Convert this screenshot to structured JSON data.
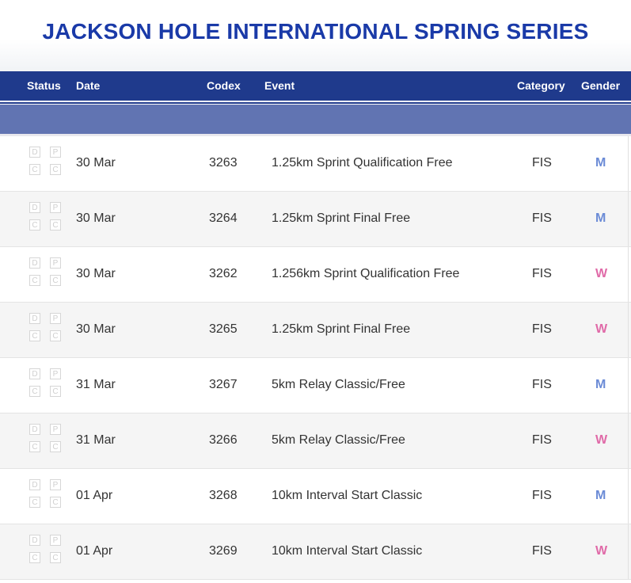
{
  "title": "JACKSON HOLE INTERNATIONAL SPRING SERIES",
  "header": {
    "status": "Status",
    "date": "Date",
    "codex": "Codex",
    "event": "Event",
    "category": "Category",
    "gender": "Gender"
  },
  "status_letters": [
    "D",
    "P",
    "C",
    "C"
  ],
  "colors": {
    "title": "#1a3aa8",
    "header_bg": "#1f3a8c",
    "subheader_bg": "#6174b2",
    "gender_m": "#6b8bd6",
    "gender_w": "#e06aa8"
  },
  "rows": [
    {
      "date": "30 Mar",
      "codex": "3263",
      "event": "1.25km Sprint Qualification Free",
      "category": "FIS",
      "gender": "M"
    },
    {
      "date": "30 Mar",
      "codex": "3264",
      "event": "1.25km Sprint Final Free",
      "category": "FIS",
      "gender": "M"
    },
    {
      "date": "30 Mar",
      "codex": "3262",
      "event": "1.256km Sprint Qualification Free",
      "category": "FIS",
      "gender": "W"
    },
    {
      "date": "30 Mar",
      "codex": "3265",
      "event": "1.25km Sprint Final Free",
      "category": "FIS",
      "gender": "W"
    },
    {
      "date": "31 Mar",
      "codex": "3267",
      "event": "5km Relay Classic/Free",
      "category": "FIS",
      "gender": "M"
    },
    {
      "date": "31 Mar",
      "codex": "3266",
      "event": "5km Relay Classic/Free",
      "category": "FIS",
      "gender": "W"
    },
    {
      "date": "01 Apr",
      "codex": "3268",
      "event": "10km Interval Start Classic",
      "category": "FIS",
      "gender": "M"
    },
    {
      "date": "01 Apr",
      "codex": "3269",
      "event": "10km Interval Start Classic",
      "category": "FIS",
      "gender": "W"
    }
  ]
}
